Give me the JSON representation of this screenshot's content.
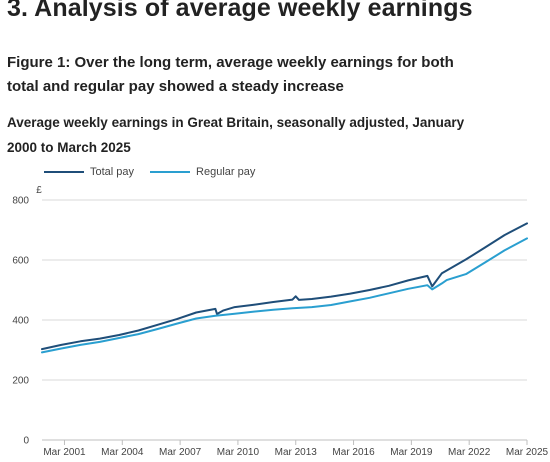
{
  "section": {
    "title": "3.  Analysis of average weekly earnings"
  },
  "figure": {
    "title": "Figure 1: Over the long term, average weekly earnings for both total and regular pay showed a steady increase",
    "subtitle": "Average weekly earnings in Great Britain, seasonally adjusted, January 2000 to March 2025"
  },
  "colors": {
    "total": "#1f4e79",
    "regular": "#2a9fd0",
    "grid": "#d9d9d9",
    "axis": "#bfbfbf"
  },
  "chart_data": {
    "type": "line",
    "ylabel": "£",
    "ylim": [
      0,
      800
    ],
    "yticks": [
      0,
      200,
      400,
      600,
      800
    ],
    "xlim": [
      "2000-01",
      "2025-03"
    ],
    "xticks": [
      "Mar 2001",
      "Mar 2004",
      "Mar 2007",
      "Mar 2010",
      "Mar 2013",
      "Mar 2016",
      "Mar 2019",
      "Mar 2022",
      "Mar 2025"
    ],
    "legend_position": "top-left",
    "grid": true,
    "series": [
      {
        "name": "Total pay",
        "key": "total",
        "points": [
          [
            "2000-01",
            303
          ],
          [
            "2001-01",
            317
          ],
          [
            "2002-01",
            329
          ],
          [
            "2003-01",
            338
          ],
          [
            "2004-01",
            350
          ],
          [
            "2005-01",
            365
          ],
          [
            "2006-01",
            384
          ],
          [
            "2007-01",
            403
          ],
          [
            "2008-01",
            425
          ],
          [
            "2009-01",
            437
          ],
          [
            "2009-02",
            420
          ],
          [
            "2009-06",
            432
          ],
          [
            "2010-01",
            443
          ],
          [
            "2011-01",
            451
          ],
          [
            "2012-01",
            460
          ],
          [
            "2013-01",
            468
          ],
          [
            "2013-03",
            479
          ],
          [
            "2013-05",
            467
          ],
          [
            "2014-01",
            470
          ],
          [
            "2015-01",
            478
          ],
          [
            "2016-01",
            488
          ],
          [
            "2017-01",
            500
          ],
          [
            "2018-01",
            514
          ],
          [
            "2019-01",
            532
          ],
          [
            "2020-01",
            547
          ],
          [
            "2020-04",
            512
          ],
          [
            "2020-10",
            556
          ],
          [
            "2021-01",
            565
          ],
          [
            "2022-01",
            602
          ],
          [
            "2023-01",
            642
          ],
          [
            "2024-01",
            683
          ],
          [
            "2025-03",
            722
          ]
        ]
      },
      {
        "name": "Regular pay",
        "key": "regular",
        "points": [
          [
            "2000-01",
            292
          ],
          [
            "2001-01",
            305
          ],
          [
            "2002-01",
            317
          ],
          [
            "2003-01",
            327
          ],
          [
            "2004-01",
            340
          ],
          [
            "2005-01",
            353
          ],
          [
            "2006-01",
            370
          ],
          [
            "2007-01",
            388
          ],
          [
            "2008-01",
            405
          ],
          [
            "2009-01",
            414
          ],
          [
            "2010-01",
            421
          ],
          [
            "2011-01",
            428
          ],
          [
            "2012-01",
            434
          ],
          [
            "2013-01",
            439
          ],
          [
            "2014-01",
            443
          ],
          [
            "2015-01",
            450
          ],
          [
            "2016-01",
            462
          ],
          [
            "2017-01",
            474
          ],
          [
            "2018-01",
            489
          ],
          [
            "2019-01",
            504
          ],
          [
            "2020-01",
            516
          ],
          [
            "2020-04",
            502
          ],
          [
            "2020-10",
            522
          ],
          [
            "2021-01",
            533
          ],
          [
            "2022-01",
            553
          ],
          [
            "2023-01",
            592
          ],
          [
            "2024-01",
            632
          ],
          [
            "2025-03",
            672
          ]
        ]
      }
    ]
  }
}
